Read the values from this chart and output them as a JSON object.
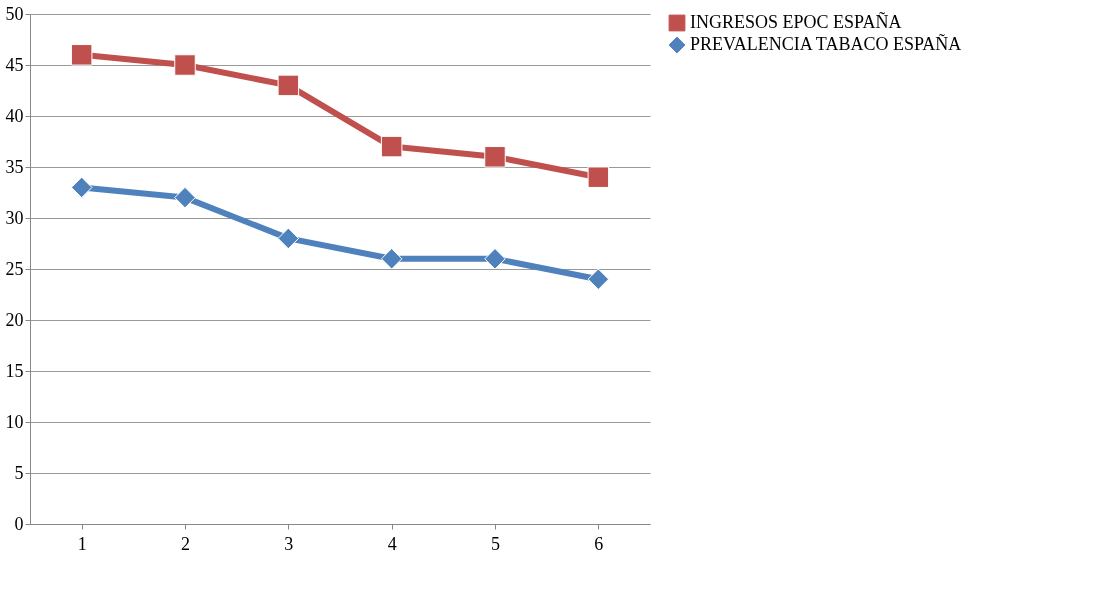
{
  "chart_data": {
    "type": "line",
    "categories": [
      "1",
      "2",
      "3",
      "4",
      "5",
      "6"
    ],
    "series": [
      {
        "name": "INGRESOS EPOC ESPAÑA",
        "color": "#c0504d",
        "marker": "square",
        "values": [
          46,
          45,
          43,
          37,
          36,
          34
        ]
      },
      {
        "name": "PREVALENCIA TABACO ESPAÑA",
        "color": "#4f81bd",
        "marker": "diamond",
        "values": [
          33,
          32,
          28,
          26,
          26,
          24
        ]
      }
    ],
    "ylim": [
      0,
      50
    ],
    "yticks": [
      0,
      5,
      10,
      15,
      20,
      25,
      30,
      35,
      40,
      45,
      50
    ],
    "grid": "y",
    "legend": "right",
    "line_style": "solid"
  }
}
